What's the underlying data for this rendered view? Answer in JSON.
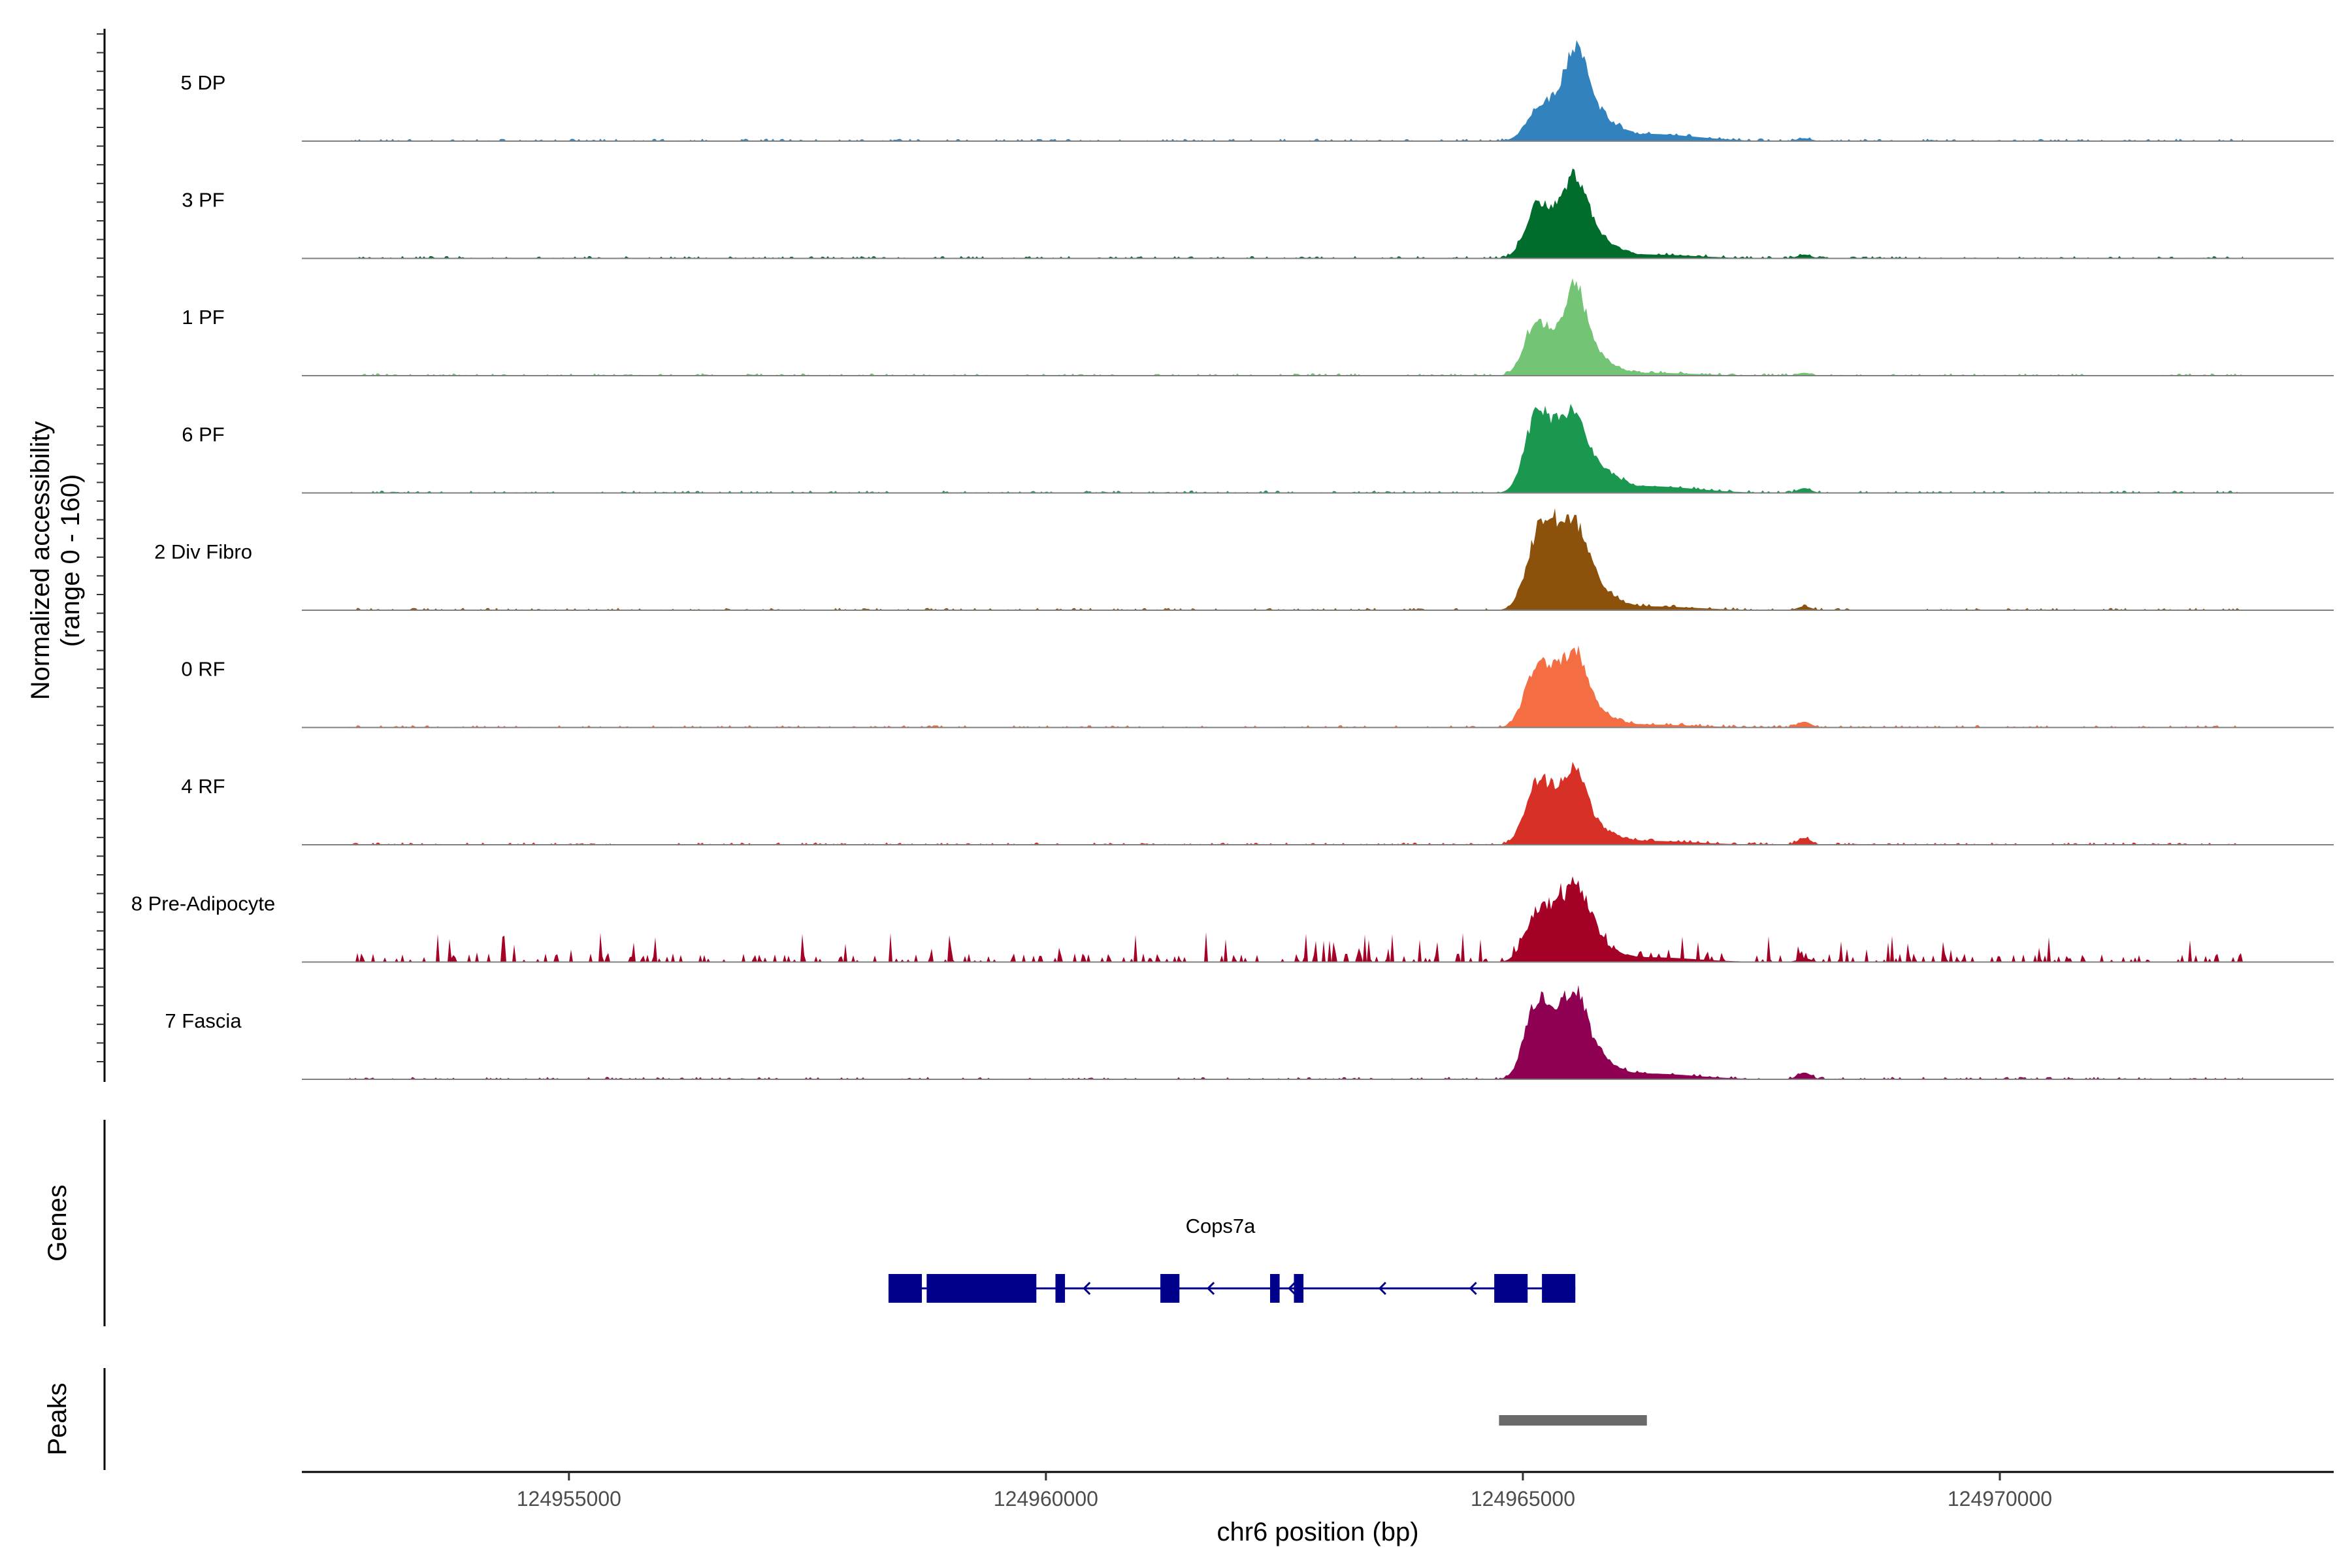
{
  "chart_data": {
    "type": "area",
    "title": "",
    "xlabel": "chr6 position (bp)",
    "ylabel": "Normalized accessibility",
    "ylabel_range": "(range 0 - 160)",
    "ylim": [
      0,
      160
    ],
    "xlim": [
      124952200,
      124973500
    ],
    "x_ticks": [
      124955000,
      124960000,
      124965000,
      124970000
    ],
    "x_tick_labels": [
      "124955000",
      "124960000",
      "124965000",
      "124970000"
    ],
    "tracks": [
      {
        "name": "5 DP",
        "color": "#3182bd"
      },
      {
        "name": "3 PF",
        "color": "#006d2c"
      },
      {
        "name": "1 PF",
        "color": "#74c476"
      },
      {
        "name": "6 PF",
        "color": "#1a9850"
      },
      {
        "name": "2 Div Fibro",
        "color": "#8c510a"
      },
      {
        "name": "0 RF",
        "color": "#f46d43"
      },
      {
        "name": "4 RF",
        "color": "#d73027"
      },
      {
        "name": "8 Pre-Adipocyte",
        "color": "#a50026"
      },
      {
        "name": "7 Fascia",
        "color": "#8e0152"
      }
    ],
    "peak_signal": [
      {
        "track": "5 DP",
        "x": [
          124964800,
          124965100,
          124965250,
          124965400,
          124965550,
          124965700,
          124965900,
          124966300,
          124967950
        ],
        "y": [
          3,
          22,
          60,
          55,
          150,
          85,
          24,
          15,
          6
        ]
      },
      {
        "track": "3 PF",
        "x": [
          124964800,
          124965100,
          124965250,
          124965400,
          124965550,
          124965700,
          124965900,
          124966300,
          124967950
        ],
        "y": [
          3,
          50,
          78,
          55,
          132,
          70,
          20,
          8,
          8
        ]
      },
      {
        "track": "1 PF",
        "x": [
          124964800,
          124965100,
          124965250,
          124965400,
          124965550,
          124965700,
          124965900,
          124966300,
          124967950
        ],
        "y": [
          3,
          65,
          62,
          40,
          150,
          60,
          16,
          6,
          6
        ]
      },
      {
        "track": "6 PF",
        "x": [
          124964800,
          124965100,
          124965250,
          124965400,
          124965550,
          124965700,
          124965900,
          124966300,
          124967950
        ],
        "y": [
          20,
          80,
          115,
          75,
          118,
          65,
          26,
          14,
          10
        ]
      },
      {
        "track": "2 Div Fibro",
        "x": [
          124964800,
          124965100,
          124965250,
          124965400,
          124965550,
          124965700,
          124965900,
          124966300,
          124967950
        ],
        "y": [
          10,
          45,
          155,
          90,
          122,
          90,
          20,
          8,
          8
        ]
      },
      {
        "track": "0 RF",
        "x": [
          124964800,
          124965100,
          124965250,
          124965400,
          124965550,
          124965700,
          124965900,
          124966300,
          124967950
        ],
        "y": [
          3,
          60,
          95,
          62,
          118,
          58,
          14,
          6,
          12
        ]
      },
      {
        "track": "4 RF",
        "x": [
          124964800,
          124965100,
          124965250,
          124965400,
          124965550,
          124965700,
          124965900,
          124966300,
          124967950
        ],
        "y": [
          3,
          60,
          95,
          50,
          118,
          50,
          16,
          8,
          14
        ]
      },
      {
        "track": "8 Pre-Adipocyte",
        "x": [
          124964800,
          124965100,
          124965250,
          124965400,
          124965550,
          124965700,
          124965900,
          124966300,
          124967950
        ],
        "y": [
          8,
          45,
          85,
          60,
          115,
          85,
          16,
          10,
          8
        ]
      },
      {
        "track": "7 Fascia",
        "x": [
          124964800,
          124965100,
          124965250,
          124965400,
          124965550,
          124965700,
          124965900,
          124966300,
          124967950
        ],
        "y": [
          12,
          80,
          110,
          70,
          138,
          70,
          20,
          12,
          14
        ]
      }
    ],
    "genes": {
      "panel_label": "Genes",
      "gene_name": "Cops7a",
      "color": "#00008b",
      "strand": "-",
      "span": [
        124958350,
        124965550
      ],
      "exons": [
        {
          "start": 124958350,
          "end": 124958700
        },
        {
          "start": 124958750,
          "end": 124959900
        },
        {
          "start": 124960100,
          "end": 124960200
        },
        {
          "start": 124961200,
          "end": 124961400
        },
        {
          "start": 124962350,
          "end": 124962450
        },
        {
          "start": 124962600,
          "end": 124962700
        },
        {
          "start": 124964700,
          "end": 124965050
        },
        {
          "start": 124965200,
          "end": 124965550
        }
      ]
    },
    "peaks": {
      "panel_label": "Peaks",
      "color": "#696969",
      "regions": [
        {
          "start": 124964750,
          "end": 124966300
        }
      ]
    }
  }
}
